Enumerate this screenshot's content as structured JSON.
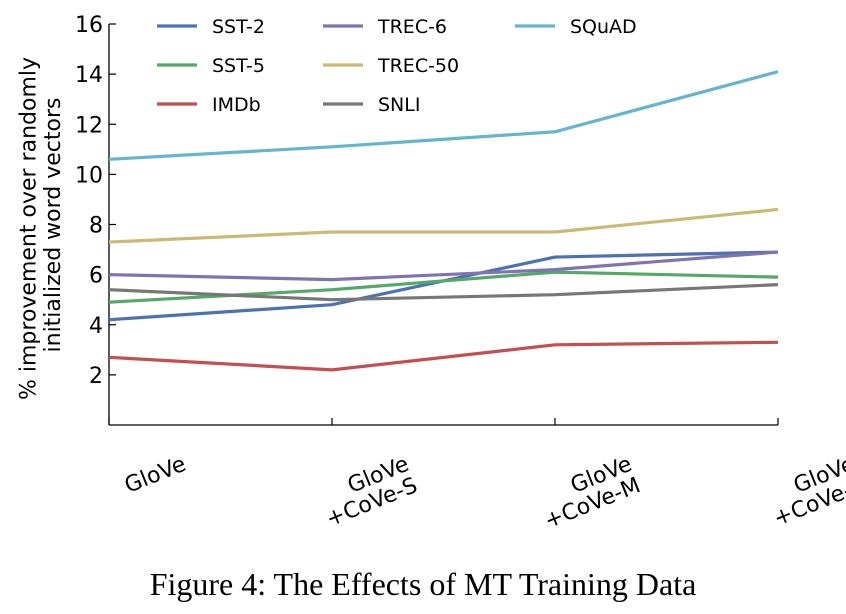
{
  "caption": "Figure 4: The Effects of MT Training Data",
  "chart_data": {
    "type": "line",
    "title": "",
    "ylabel_lines": [
      "% improvement over randomly",
      "initialized word vectors"
    ],
    "xlabel": "",
    "categories": [
      [
        "GloVe"
      ],
      [
        "GloVe",
        "+CoVe-S"
      ],
      [
        "GloVe",
        "+CoVe-M"
      ],
      [
        "GloVe",
        "+CoVe-L"
      ]
    ],
    "ylim": [
      0,
      16
    ],
    "yticks": [
      2,
      4,
      6,
      8,
      10,
      12,
      14,
      16
    ],
    "grid": false,
    "legend_position": "top, inside plot, 3 columns",
    "series": [
      {
        "name": "SST-2",
        "color": "#4c72b0",
        "values": [
          4.2,
          4.8,
          6.7,
          6.9
        ]
      },
      {
        "name": "SST-5",
        "color": "#55a868",
        "values": [
          4.9,
          5.4,
          6.1,
          5.9
        ]
      },
      {
        "name": "IMDb",
        "color": "#c44e52",
        "values": [
          2.7,
          2.2,
          3.2,
          3.3
        ]
      },
      {
        "name": "TREC-6",
        "color": "#8172b2",
        "values": [
          6.0,
          5.8,
          6.2,
          6.9
        ]
      },
      {
        "name": "TREC-50",
        "color": "#ccb974",
        "values": [
          7.3,
          7.7,
          7.7,
          8.6
        ]
      },
      {
        "name": "SNLI",
        "color": "#777777",
        "values": [
          5.4,
          5.0,
          5.2,
          5.6
        ]
      },
      {
        "name": "SQuAD",
        "color": "#64b5cd",
        "values": [
          10.6,
          11.1,
          11.7,
          14.1
        ]
      }
    ]
  }
}
